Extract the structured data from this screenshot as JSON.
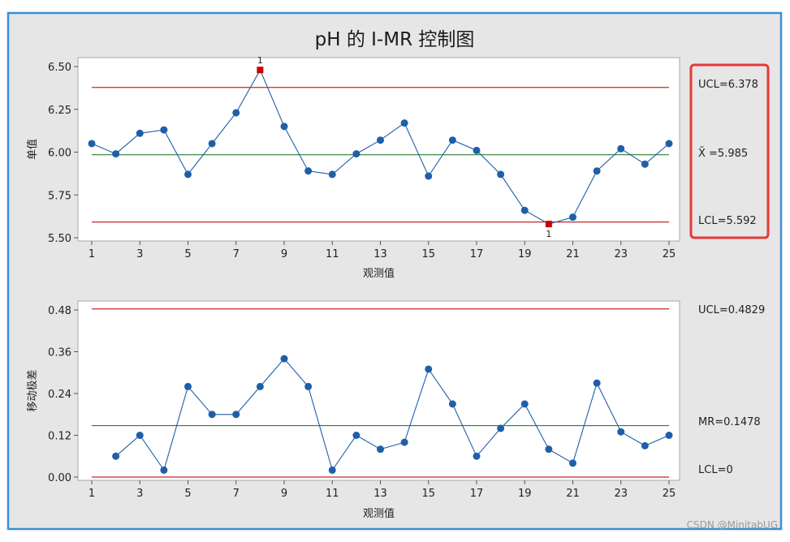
{
  "title": "pH 的 I-MR 控制图",
  "watermark": "CSDN @MinitabUG",
  "colors": {
    "frame_border": "#3a8fd9",
    "background": "#e6e6e6",
    "plot_bg": "#ffffff",
    "data": "#1f5fa8",
    "center": "#2e7d32",
    "limit": "#c62828",
    "highlight": "#e53935",
    "out_of_control": "#cc0000"
  },
  "chart_data": [
    {
      "type": "line",
      "title": "",
      "xlabel": "观测值",
      "ylabel": "单值",
      "x": [
        1,
        2,
        3,
        4,
        5,
        6,
        7,
        8,
        9,
        10,
        11,
        12,
        13,
        14,
        15,
        16,
        17,
        18,
        19,
        20,
        21,
        22,
        23,
        24,
        25
      ],
      "xticks": [
        1,
        3,
        5,
        7,
        9,
        11,
        13,
        15,
        17,
        19,
        21,
        23,
        25
      ],
      "ylim": [
        5.5,
        6.5
      ],
      "yticks": [
        5.5,
        5.75,
        6.0,
        6.25,
        6.5
      ],
      "ytick_labels": [
        "5.50",
        "5.75",
        "6.00",
        "6.25",
        "6.50"
      ],
      "series": [
        {
          "values": [
            6.05,
            5.99,
            6.11,
            6.13,
            5.87,
            6.05,
            6.23,
            6.48,
            6.15,
            5.89,
            5.87,
            5.99,
            6.07,
            6.17,
            5.86,
            6.07,
            6.01,
            5.87,
            5.66,
            5.58,
            5.62,
            5.89,
            6.02,
            5.93,
            6.05
          ]
        }
      ],
      "out_of_control": [
        {
          "x": 8,
          "label": "1",
          "label_position": "above"
        },
        {
          "x": 20,
          "label": "1",
          "label_position": "below"
        }
      ],
      "ucl": 6.378,
      "center": 5.985,
      "lcl": 5.592,
      "limit_labels": {
        "ucl": "UCL=6.378",
        "center": "X̄ =5.985",
        "lcl": "LCL=5.592"
      },
      "grid": false
    },
    {
      "type": "line",
      "title": "",
      "xlabel": "观测值",
      "ylabel": "移动极差",
      "x": [
        2,
        3,
        4,
        5,
        6,
        7,
        8,
        9,
        10,
        11,
        12,
        13,
        14,
        15,
        16,
        17,
        18,
        19,
        20,
        21,
        22,
        23,
        24,
        25
      ],
      "xticks": [
        1,
        3,
        5,
        7,
        9,
        11,
        13,
        15,
        17,
        19,
        21,
        23,
        25
      ],
      "xlim": [
        1,
        25
      ],
      "ylim": [
        0,
        0.48
      ],
      "yticks": [
        0.0,
        0.12,
        0.24,
        0.36,
        0.48
      ],
      "ytick_labels": [
        "0.00",
        "0.12",
        "0.24",
        "0.36",
        "0.48"
      ],
      "series": [
        {
          "values": [
            0.06,
            0.12,
            0.02,
            0.26,
            0.18,
            0.18,
            0.26,
            0.34,
            0.26,
            0.02,
            0.12,
            0.08,
            0.1,
            0.31,
            0.21,
            0.06,
            0.14,
            0.21,
            0.08,
            0.04,
            0.27,
            0.13,
            0.09,
            0.12
          ]
        }
      ],
      "ucl": 0.4829,
      "center": 0.1478,
      "lcl": 0,
      "limit_labels": {
        "ucl": "UCL=0.4829",
        "center": "MR=0.1478",
        "lcl": "LCL=0"
      },
      "grid": false
    }
  ]
}
